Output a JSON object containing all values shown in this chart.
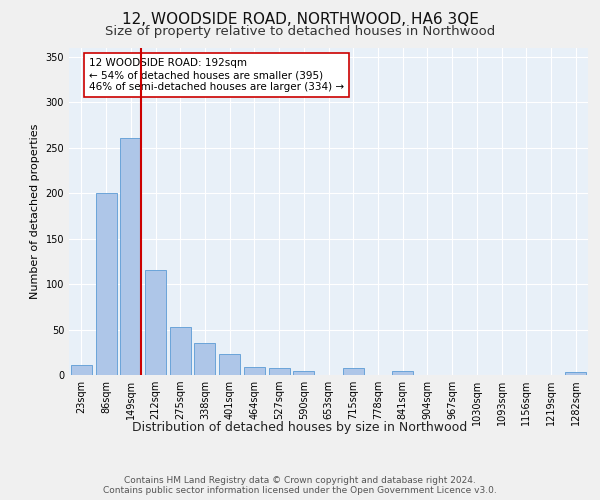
{
  "title": "12, WOODSIDE ROAD, NORTHWOOD, HA6 3QE",
  "subtitle": "Size of property relative to detached houses in Northwood",
  "xlabel": "Distribution of detached houses by size in Northwood",
  "ylabel": "Number of detached properties",
  "categories": [
    "23sqm",
    "86sqm",
    "149sqm",
    "212sqm",
    "275sqm",
    "338sqm",
    "401sqm",
    "464sqm",
    "527sqm",
    "590sqm",
    "653sqm",
    "715sqm",
    "778sqm",
    "841sqm",
    "904sqm",
    "967sqm",
    "1030sqm",
    "1093sqm",
    "1156sqm",
    "1219sqm",
    "1282sqm"
  ],
  "values": [
    11,
    200,
    260,
    115,
    53,
    35,
    23,
    9,
    8,
    4,
    0,
    8,
    0,
    4,
    0,
    0,
    0,
    0,
    0,
    0,
    3
  ],
  "bar_color": "#aec6e8",
  "bar_edge_color": "#5b9bd5",
  "vline_color": "#cc0000",
  "annotation_text": "12 WOODSIDE ROAD: 192sqm\n← 54% of detached houses are smaller (395)\n46% of semi-detached houses are larger (334) →",
  "annotation_box_color": "#ffffff",
  "annotation_box_edge_color": "#cc0000",
  "ylim": [
    0,
    360
  ],
  "yticks": [
    0,
    50,
    100,
    150,
    200,
    250,
    300,
    350
  ],
  "background_color": "#e8f0f8",
  "grid_color": "#ffffff",
  "footer_text": "Contains HM Land Registry data © Crown copyright and database right 2024.\nContains public sector information licensed under the Open Government Licence v3.0.",
  "title_fontsize": 11,
  "subtitle_fontsize": 9.5,
  "xlabel_fontsize": 9,
  "ylabel_fontsize": 8,
  "tick_fontsize": 7,
  "annotation_fontsize": 7.5,
  "footer_fontsize": 6.5,
  "fig_facecolor": "#f0f0f0"
}
